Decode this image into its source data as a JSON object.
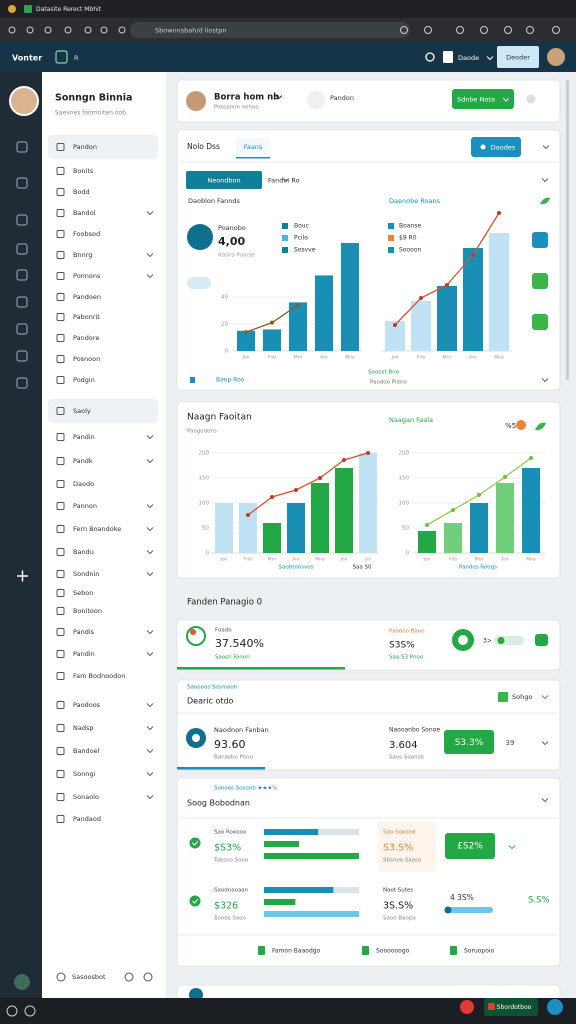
{
  "browser": {
    "tab": "Datasite Rerect Mbhit",
    "url": "Sbownnsbah/d liostpn"
  },
  "header": {
    "brand": "Vonter",
    "tab": "R",
    "menu": "Daode",
    "button": "Deoder"
  },
  "profile": {
    "name": "Sonngn Binnia",
    "subtitle": "Saevnes foomniten oob"
  },
  "nav": [
    "Pandon",
    "Bonits",
    "Bodd",
    "Bandol",
    "Foobsod",
    "Bnnrg",
    "Ponnons",
    "Pandoen",
    "Pabonrit",
    "Pandore",
    "Posnoon",
    "Podgin"
  ],
  "nav2_title": "Saoly",
  "nav2": [
    "Pandin",
    "Pandk",
    "Daodo",
    "Pannon",
    "Fern Boandoke",
    "Bandu",
    "Sondnin",
    "Sebon",
    "Bonitoon",
    "Pandis",
    "Pandin",
    "Fam Bodnoodon",
    "Paodoos",
    "Nadsp",
    "Bandoel",
    "Sonngi",
    "Sonaolo",
    "Pandaod"
  ],
  "sidebar_footer": "Sasoosbot",
  "user_card": {
    "name": "Borra hom nb",
    "subtitle": "Poossnim nohoo",
    "icon_label": "Pandon",
    "button": "Sdnbe Nota"
  },
  "overview": {
    "title": "Nolo Dss",
    "tab": "Faans",
    "button": "Daodes",
    "filter": "Neondbon",
    "filter2": "Fandin Ro",
    "left_title": "Daoblon Fannds",
    "right_title": "Daenobe Roans",
    "stat_label": "Poanobo",
    "stat_value": "4,00",
    "stat_note": "Rasirs Poorse",
    "legend": [
      "Bouc",
      "Pcilo",
      "Sosvve"
    ],
    "legend2": [
      "Boanse",
      "$9 R0",
      "Soooon"
    ],
    "footer_left": "Baop Roo",
    "footer_mid": "Saoost Bno",
    "footer_mid2": "Paodoo Piano"
  },
  "charts": [
    {
      "categories": [
        "Jon",
        "Fnb",
        "Mnr",
        "Anr",
        "Mna"
      ],
      "values": [
        15,
        16,
        36,
        56,
        80
      ],
      "line": [
        14,
        21,
        34
      ],
      "ylim": [
        0,
        80
      ],
      "yticks": [
        0,
        20,
        40
      ]
    },
    {
      "categories": [
        "Jon",
        "Fnb",
        "Mnr",
        "Anr",
        "Mna"
      ],
      "values": [
        30,
        50,
        65,
        103,
        118
      ],
      "line": [
        26,
        53,
        66,
        96,
        138
      ],
      "ylim": [
        0,
        140
      ]
    },
    {
      "categories": [
        "Jon",
        "Fnb",
        "Mnr",
        "Anr",
        "Mna",
        "Jnn",
        "Jnl"
      ],
      "values": [
        100,
        100,
        60,
        100,
        140,
        170,
        200
      ],
      "line": [
        76,
        112,
        126,
        150,
        186,
        200
      ],
      "ylim": [
        0,
        200
      ],
      "yticks": [
        0,
        50,
        100,
        150,
        200
      ]
    },
    {
      "categories": [
        "Jon",
        "Fnb",
        "Mnr",
        "Anr",
        "Mna"
      ],
      "values": [
        44,
        60,
        100,
        140,
        170
      ],
      "line": [
        56,
        86,
        116,
        152,
        190
      ],
      "ylim": [
        0,
        200
      ],
      "yticks": [
        0,
        50,
        100,
        150,
        200
      ]
    }
  ],
  "growth": {
    "title": "Naagn Faoitan",
    "subtitle": "Paogodons",
    "right_title": "Naagan Faala",
    "right_value": "%5",
    "left_note": "Saobtoosvos",
    "left_note2": "Saa S0",
    "right_note": "Paodos Roogs"
  },
  "section_title": "Fanden Panagio 0",
  "kpi": {
    "label": "Foado",
    "value": "37.540%",
    "note": "Saosn Fanon",
    "label2": "Paodoo Baoo",
    "value2": "S3S%",
    "note2": "Saa S3 Pnoo",
    "toggle": "3>",
    "progress": 44
  },
  "detail": {
    "kicker": "Saoooas Sosmaoh",
    "title": "Dearic otdo",
    "filter": "Sohgo",
    "label": "Naodnon Fanban",
    "value": "93.60",
    "note": "Banasbo Pono",
    "label2": "Naooanbo Sonoe",
    "value2": "3.604",
    "note2": "Saos Soonsb",
    "badge": "S3.3%",
    "count": "39",
    "progress": 23
  },
  "list": {
    "kicker": "Sonoos Sosonb ★★★%",
    "title": "Soog Bobodnan",
    "rows": [
      {
        "label": "Sao Rooooo",
        "value": "$S3%",
        "note": "Tobsoo Sooo",
        "label2": "Sao Sooood",
        "value2": "S3.S%",
        "note2": "Sbsnoo Saaso",
        "badge": "£S2%",
        "bars": [
          57,
          37,
          100
        ]
      },
      {
        "label": "Saodnaoaan",
        "value": "$326",
        "note": "Soods Sooo",
        "label2": "Naot Sutes",
        "value2": "3S.S%",
        "note2": "Saoo Baopa",
        "extra": "4 3S%",
        "extra2": "S.S%",
        "bars": [
          73,
          33,
          100
        ]
      }
    ],
    "footer": [
      "Famon Baaodgo",
      "Soooooogo",
      "Soruopoio"
    ]
  },
  "taskbar": {
    "button": "Sbordotboo"
  }
}
